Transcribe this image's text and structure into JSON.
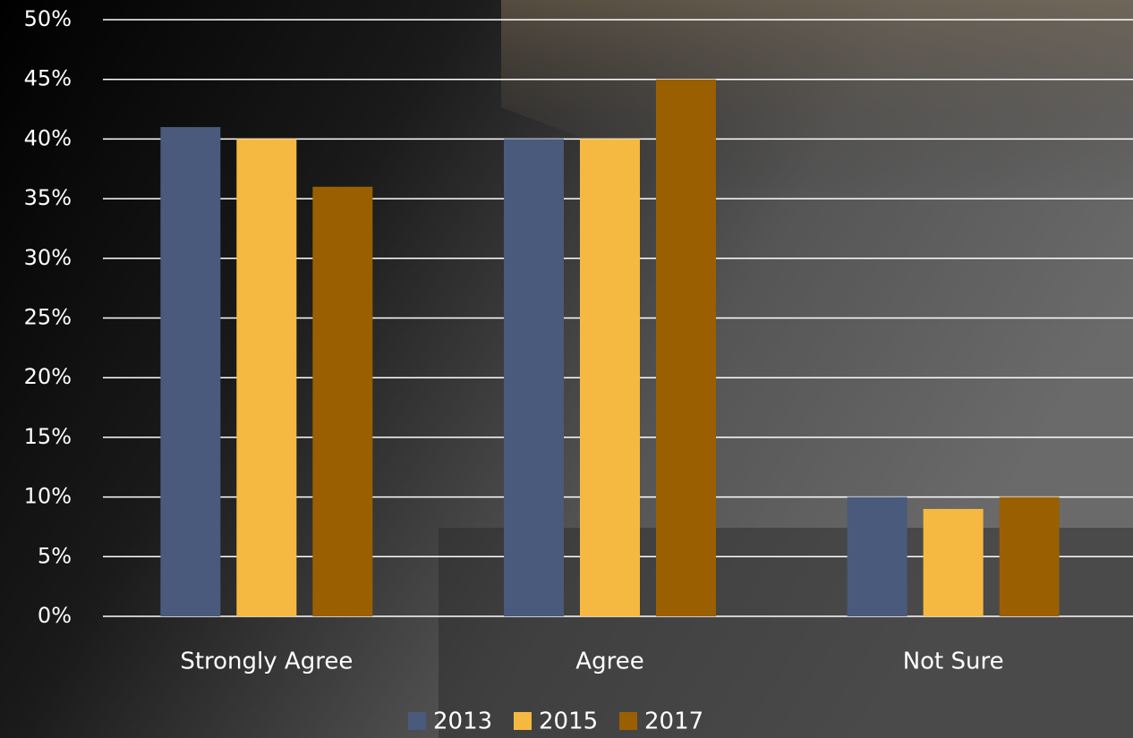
{
  "chart_data": {
    "type": "bar",
    "categories": [
      "Strongly Agree",
      "Agree",
      "Not Sure"
    ],
    "series": [
      {
        "name": "2013",
        "color": "#4a5a7c",
        "values": [
          41,
          40,
          10
        ]
      },
      {
        "name": "2015",
        "color": "#f5b941",
        "values": [
          40,
          40,
          9
        ]
      },
      {
        "name": "2017",
        "color": "#9a5f00",
        "values": [
          36,
          45,
          10
        ]
      }
    ],
    "ylim": [
      0,
      50
    ],
    "yticks": [
      {
        "value": 0,
        "label": "0%"
      },
      {
        "value": 5,
        "label": "5%"
      },
      {
        "value": 10,
        "label": "10%"
      },
      {
        "value": 15,
        "label": "15%"
      },
      {
        "value": 20,
        "label": "20%"
      },
      {
        "value": 25,
        "label": "25%"
      },
      {
        "value": 30,
        "label": "30%"
      },
      {
        "value": 35,
        "label": "35%"
      },
      {
        "value": 40,
        "label": "40%"
      },
      {
        "value": 45,
        "label": "45%"
      },
      {
        "value": 50,
        "label": "50%"
      }
    ],
    "grid": true,
    "legend": "bottom"
  }
}
